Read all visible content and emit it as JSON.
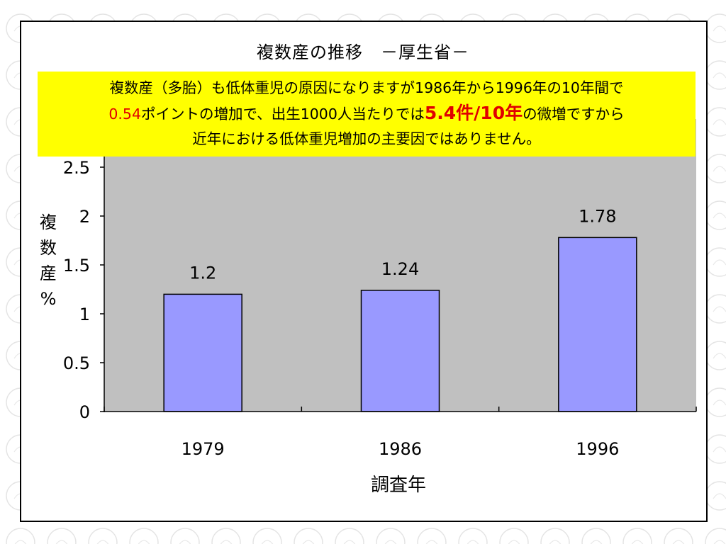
{
  "slide": {
    "title": "複数産の推移　－厚生省－",
    "note": {
      "line1": "複数産（多胎）も低体重児の原因になりますが1986年から1996年の10年間で",
      "line2_red_a": "0.54",
      "line2_b": "ポイントの増加で、出生1000人当たりでは",
      "line2_red_c": "5.4件/10年",
      "line2_d": "の微増ですから",
      "line3": "近年における低体重児増加の主要因ではありません。"
    }
  },
  "colors": {
    "plot_bg": "#c0c0c0",
    "bar_fill": "#9999ff",
    "note_bg": "#ffff00",
    "note_accent": "#e00000"
  },
  "chart_data": {
    "type": "bar",
    "categories": [
      "1979",
      "1986",
      "1996"
    ],
    "values": [
      1.2,
      1.24,
      1.78
    ],
    "data_labels": [
      "1.2",
      "1.24",
      "1.78"
    ],
    "title": "複数産の推移　－厚生省－",
    "xlabel": "調査年",
    "ylabel": "複数産%",
    "ylabel_chars": [
      "複",
      "数",
      "産",
      "%"
    ],
    "ylim": [
      0,
      2.5
    ],
    "yticks": [
      0,
      0.5,
      1,
      1.5,
      2,
      2.5
    ],
    "ytick_labels": [
      "0",
      "0.5",
      "1",
      "1.5",
      "2",
      "2.5"
    ],
    "grid": false,
    "legend": "none"
  }
}
